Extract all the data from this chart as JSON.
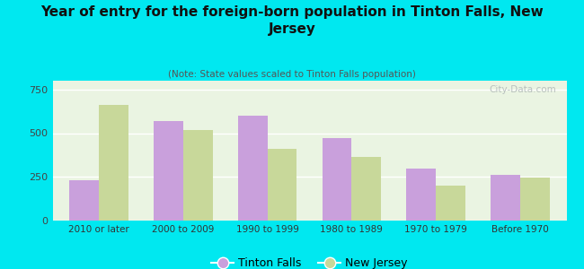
{
  "title": "Year of entry for the foreign-born population in Tinton Falls, New\nJersey",
  "subtitle": "(Note: State values scaled to Tinton Falls population)",
  "categories": [
    "2010 or later",
    "2000 to 2009",
    "1990 to 1999",
    "1980 to 1989",
    "1970 to 1979",
    "Before 1970"
  ],
  "tinton_falls": [
    230,
    570,
    600,
    470,
    300,
    260
  ],
  "new_jersey": [
    660,
    520,
    410,
    365,
    200,
    245
  ],
  "tinton_falls_color": "#c9a0dc",
  "new_jersey_color": "#c8d89a",
  "background_color": "#00e8f0",
  "ylim": [
    0,
    800
  ],
  "yticks": [
    0,
    250,
    500,
    750
  ],
  "bar_width": 0.35,
  "legend_labels": [
    "Tinton Falls",
    "New Jersey"
  ],
  "watermark": "City-Data.com"
}
